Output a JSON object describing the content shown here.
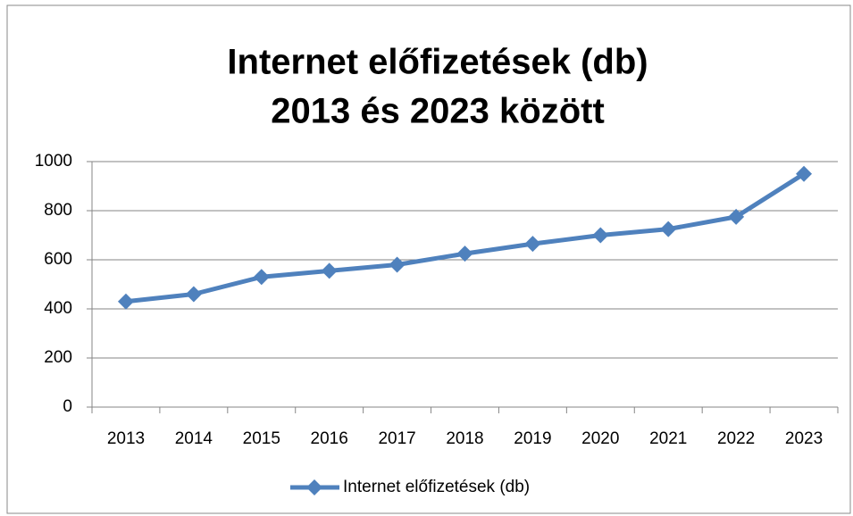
{
  "chart_data": {
    "type": "line",
    "title_lines": [
      "Internet előfizetések (db)",
      "2013 és 2023 között"
    ],
    "categories": [
      "2013",
      "2014",
      "2015",
      "2016",
      "2017",
      "2018",
      "2019",
      "2020",
      "2021",
      "2022",
      "2023"
    ],
    "series": [
      {
        "name": "Internet előfizetések (db)",
        "color": "#4f81bd",
        "values": [
          430,
          460,
          530,
          555,
          580,
          625,
          665,
          700,
          725,
          775,
          950
        ]
      }
    ],
    "ylim": [
      0,
      1000
    ],
    "yticks": [
      0,
      200,
      400,
      600,
      800,
      1000
    ],
    "grid": true,
    "legend": "bottom"
  }
}
